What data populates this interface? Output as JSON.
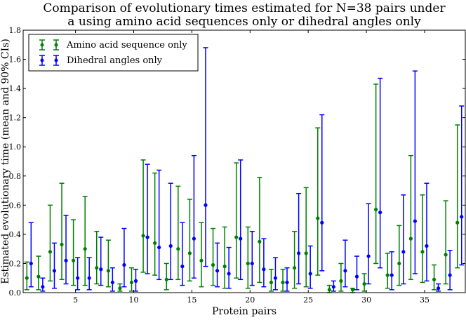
{
  "chart_data": {
    "type": "scatter",
    "title_lines": [
      "Comparison of evolutionary times estimated for N=38 pairs under",
      "a using amino acid sequences only or dihedral angles only"
    ],
    "xlabel": "Protein pairs",
    "ylabel": "Estimated evolutionary time (mean and 90% CIs)",
    "xlim": [
      0.5,
      38.5
    ],
    "ylim": [
      0,
      1.8
    ],
    "xticks": [
      5,
      10,
      15,
      20,
      25,
      30,
      35
    ],
    "yticks": [
      0.0,
      0.2,
      0.4,
      0.6,
      0.8,
      1.0,
      1.2,
      1.4,
      1.6,
      1.8
    ],
    "ytick_labels": [
      "0.0",
      "0.2",
      "0.4",
      "0.6",
      "0.8",
      "1.0",
      "1.2",
      "1.4",
      "1.6",
      "1.8"
    ],
    "grid": false,
    "legend_position": "top-left",
    "series": [
      {
        "name": "Amino acid sequence only",
        "color": "#008000",
        "x": [
          1,
          2,
          3,
          4,
          5,
          6,
          7,
          8,
          9,
          10,
          11,
          12,
          13,
          14,
          15,
          16,
          17,
          18,
          19,
          20,
          21,
          22,
          23,
          24,
          25,
          26,
          27,
          28,
          29,
          30,
          31,
          32,
          33,
          34,
          35,
          36,
          37,
          38
        ],
        "mean": [
          0.1,
          0.11,
          0.28,
          0.33,
          0.22,
          0.3,
          0.17,
          0.15,
          0.03,
          0.07,
          0.39,
          0.34,
          0.09,
          0.3,
          0.27,
          0.22,
          0.19,
          0.18,
          0.38,
          0.2,
          0.35,
          0.07,
          0.07,
          0.17,
          0.27,
          0.51,
          0.02,
          0.08,
          0.02,
          0.06,
          0.57,
          0.12,
          0.2,
          0.37,
          0.28,
          0.09,
          0.26,
          0.48
        ],
        "lower": [
          0.02,
          0.02,
          0.08,
          0.09,
          0.05,
          0.05,
          0.06,
          0.04,
          0.01,
          0.01,
          0.14,
          0.12,
          0.02,
          0.09,
          0.08,
          0.04,
          0.05,
          0.03,
          0.1,
          0.03,
          0.07,
          0.01,
          0.01,
          0.03,
          0.04,
          0.12,
          0.0,
          0.01,
          0.0,
          0.01,
          0.2,
          0.03,
          0.05,
          0.09,
          0.07,
          0.02,
          0.06,
          0.17
        ],
        "upper": [
          0.21,
          0.25,
          0.6,
          0.75,
          0.5,
          0.66,
          0.42,
          0.36,
          0.06,
          0.17,
          0.91,
          0.82,
          0.2,
          0.73,
          0.64,
          0.48,
          0.44,
          0.45,
          0.89,
          0.45,
          0.79,
          0.16,
          0.16,
          0.42,
          0.72,
          1.13,
          0.05,
          0.2,
          0.03,
          0.13,
          1.43,
          0.27,
          0.46,
          0.94,
          0.67,
          0.19,
          0.63,
          1.15
        ]
      },
      {
        "name": "Dihedral angles only",
        "color": "#0000ff",
        "x": [
          1,
          2,
          3,
          4,
          5,
          6,
          7,
          8,
          9,
          10,
          11,
          12,
          13,
          14,
          15,
          16,
          17,
          18,
          19,
          20,
          21,
          22,
          23,
          24,
          25,
          26,
          27,
          28,
          29,
          30,
          31,
          32,
          33,
          34,
          35,
          36,
          37,
          38
        ],
        "mean": [
          0.2,
          0.04,
          0.15,
          0.22,
          0.1,
          0.1,
          0.16,
          0.07,
          0.19,
          0.08,
          0.38,
          0.31,
          0.32,
          0.18,
          0.37,
          0.6,
          0.15,
          0.13,
          0.37,
          0.2,
          0.16,
          0.1,
          0.07,
          0.27,
          0.13,
          0.48,
          0.04,
          0.15,
          0.11,
          0.25,
          0.55,
          0.12,
          0.28,
          0.49,
          0.32,
          0.03,
          0.12,
          0.52
        ],
        "lower": [
          0.04,
          0.01,
          0.03,
          0.06,
          0.02,
          0.02,
          0.05,
          0.01,
          0.04,
          0.01,
          0.13,
          0.09,
          0.09,
          0.05,
          0.1,
          0.18,
          0.04,
          0.03,
          0.09,
          0.05,
          0.04,
          0.02,
          0.01,
          0.06,
          0.03,
          0.15,
          0.01,
          0.04,
          0.02,
          0.06,
          0.17,
          0.02,
          0.06,
          0.13,
          0.08,
          0.01,
          0.02,
          0.19
        ],
        "upper": [
          0.48,
          0.1,
          0.34,
          0.53,
          0.24,
          0.24,
          0.38,
          0.17,
          0.44,
          0.16,
          0.88,
          0.84,
          0.75,
          0.48,
          0.94,
          1.68,
          0.34,
          0.31,
          0.91,
          0.42,
          0.37,
          0.24,
          0.17,
          0.68,
          0.32,
          1.22,
          0.08,
          0.36,
          0.25,
          0.61,
          1.47,
          0.28,
          0.67,
          1.52,
          0.75,
          0.06,
          0.29,
          1.28
        ]
      }
    ]
  }
}
